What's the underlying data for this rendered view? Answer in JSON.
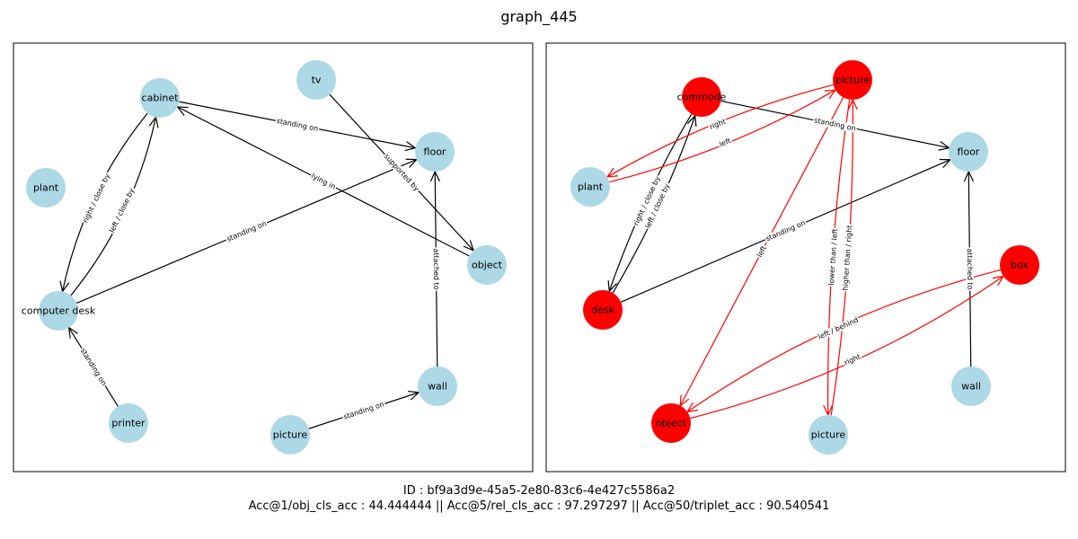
{
  "title": "graph_445",
  "footer": {
    "id_line": "ID : bf9a3d9e-45a5-2e80-83c6-4e427c5586a2",
    "metrics_line": "Acc@1/obj_cls_acc : 44.444444 || Acc@5/rel_cls_acc : 97.297297 || Acc@50/triplet_acc : 90.540541"
  },
  "colors": {
    "node_default": "#add8e6",
    "node_wrong": "#ff0000",
    "edge_default": "#000000",
    "edge_wrong": "#ff0000"
  },
  "panels": [
    {
      "name": "ground-truth-graph",
      "nodes": [
        {
          "id": "cabinet",
          "label": "cabinet",
          "color": "#add8e6"
        },
        {
          "id": "tv",
          "label": "tv",
          "color": "#add8e6"
        },
        {
          "id": "floor",
          "label": "floor",
          "color": "#add8e6"
        },
        {
          "id": "plant",
          "label": "plant",
          "color": "#add8e6"
        },
        {
          "id": "object",
          "label": "object",
          "color": "#add8e6"
        },
        {
          "id": "computer_desk",
          "label": "computer desk",
          "color": "#add8e6"
        },
        {
          "id": "wall",
          "label": "wall",
          "color": "#add8e6"
        },
        {
          "id": "printer",
          "label": "printer",
          "color": "#add8e6"
        },
        {
          "id": "picture",
          "label": "picture",
          "color": "#add8e6"
        }
      ],
      "edges": [
        {
          "source": "cabinet",
          "target": "floor",
          "label": "standing on",
          "color": "#000000"
        },
        {
          "source": "object",
          "target": "cabinet",
          "label": "lying in",
          "color": "#000000"
        },
        {
          "source": "tv",
          "target": "object",
          "label": "supported by",
          "color": "#000000"
        },
        {
          "source": "cabinet",
          "target": "computer_desk",
          "label": "right / close by",
          "color": "#000000"
        },
        {
          "source": "computer_desk",
          "target": "cabinet",
          "label": "left / close by",
          "color": "#000000"
        },
        {
          "source": "computer_desk",
          "target": "floor",
          "label": "standing on",
          "color": "#000000"
        },
        {
          "source": "wall",
          "target": "floor",
          "label": "attached to",
          "color": "#000000"
        },
        {
          "source": "printer",
          "target": "computer_desk",
          "label": "standing on",
          "color": "#000000"
        },
        {
          "source": "picture",
          "target": "wall",
          "label": "standing on",
          "color": "#000000"
        }
      ]
    },
    {
      "name": "predicted-graph",
      "nodes": [
        {
          "id": "commode",
          "label": "commode",
          "color": "#ff0000"
        },
        {
          "id": "picture_top",
          "label": "picture",
          "color": "#ff0000"
        },
        {
          "id": "floor",
          "label": "floor",
          "color": "#add8e6"
        },
        {
          "id": "plant",
          "label": "plant",
          "color": "#add8e6"
        },
        {
          "id": "box",
          "label": "box",
          "color": "#ff0000"
        },
        {
          "id": "desk",
          "label": "desk",
          "color": "#ff0000"
        },
        {
          "id": "wall",
          "label": "wall",
          "color": "#add8e6"
        },
        {
          "id": "object",
          "label": "object",
          "color": "#ff0000"
        },
        {
          "id": "picture_bottom",
          "label": "picture",
          "color": "#add8e6"
        }
      ],
      "edges": [
        {
          "source": "commode",
          "target": "floor",
          "label": "standing on",
          "color": "#000000"
        },
        {
          "source": "commode",
          "target": "desk",
          "label": "right / close by",
          "color": "#000000"
        },
        {
          "source": "desk",
          "target": "commode",
          "label": "left / close by",
          "color": "#000000"
        },
        {
          "source": "desk",
          "target": "floor",
          "label": "standing on",
          "color": "#000000"
        },
        {
          "source": "wall",
          "target": "floor",
          "label": "attached to",
          "color": "#000000"
        },
        {
          "source": "picture_top",
          "target": "plant",
          "label": "right",
          "color": "#ff0000"
        },
        {
          "source": "plant",
          "target": "picture_top",
          "label": "left",
          "color": "#ff0000"
        },
        {
          "source": "picture_top",
          "target": "object",
          "label": "left",
          "color": "#ff0000"
        },
        {
          "source": "picture_top",
          "target": "picture_bottom",
          "label": "lower than / left",
          "color": "#ff0000"
        },
        {
          "source": "picture_bottom",
          "target": "picture_top",
          "label": "higher than / right",
          "color": "#ff0000"
        },
        {
          "source": "box",
          "target": "object",
          "label": "left / behind",
          "color": "#ff0000"
        },
        {
          "source": "object",
          "target": "box",
          "label": "right",
          "color": "#ff0000"
        }
      ]
    }
  ]
}
